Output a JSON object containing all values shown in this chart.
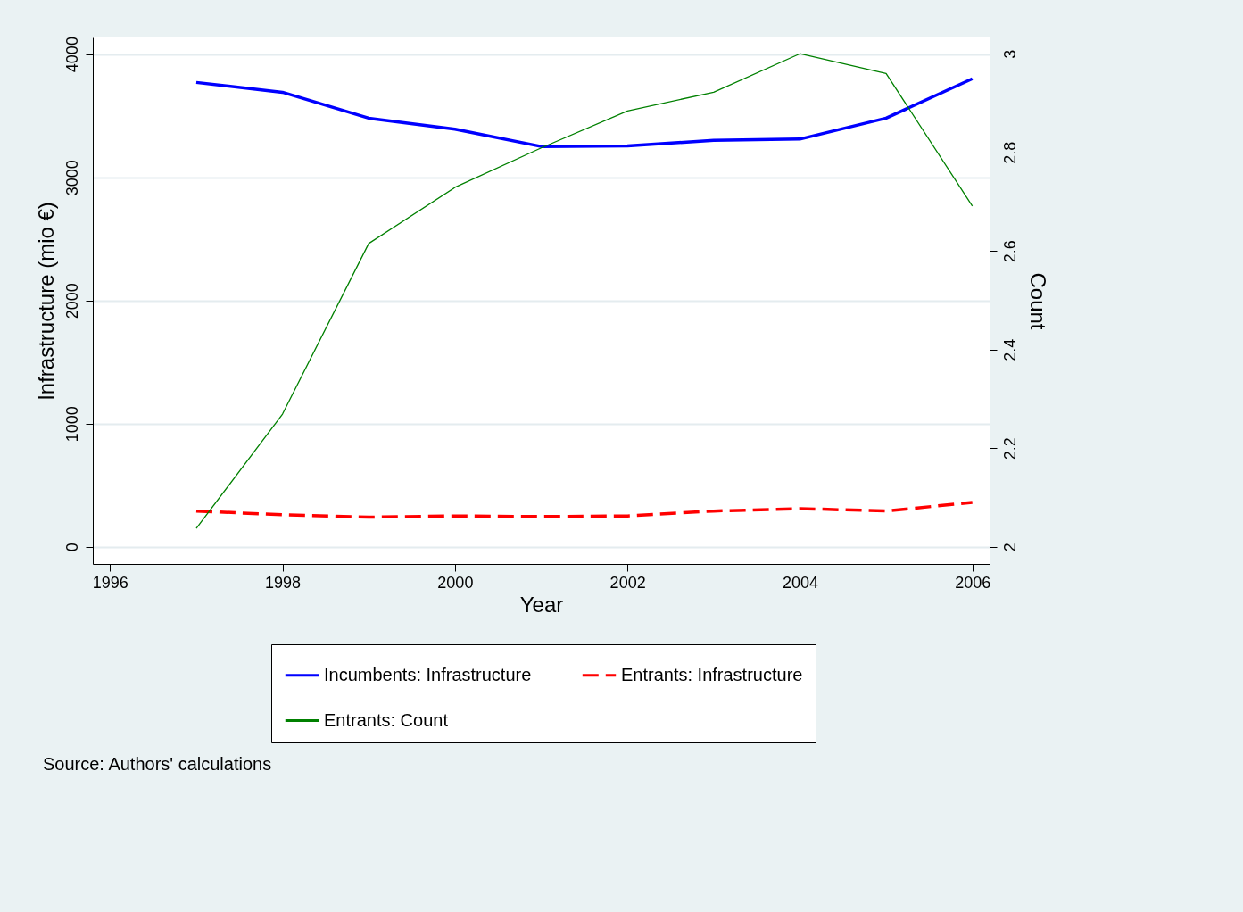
{
  "chart_data": {
    "type": "line",
    "xlabel": "Year",
    "ylabel": "Infrastructure (mio €)",
    "y2label": "Count",
    "x": [
      1997,
      1998,
      1999,
      2000,
      2001,
      2002,
      2003,
      2004,
      2005,
      2006
    ],
    "series": [
      {
        "name": "Incumbents: Infrastructure",
        "color": "#0000ff",
        "line_style": "solid",
        "values": [
          3770,
          3690,
          3480,
          3390,
          3250,
          3255,
          3300,
          3310,
          3480,
          3800
        ]
      },
      {
        "name": "Entrants: Infrastructure",
        "color": "#ff0000",
        "line_style": "dashed",
        "values": [
          290,
          260,
          240,
          250,
          245,
          250,
          290,
          310,
          290,
          360
        ]
      },
      {
        "name": "Entrants: Count",
        "color": "#008000",
        "line_style": "solid",
        "axis": "y2",
        "values": [
          2.037,
          2.269,
          2.615,
          2.729,
          2.809,
          2.884,
          2.922,
          3.0,
          2.96,
          2.691
        ]
      }
    ],
    "xlim": [
      1995.8,
      2006.2
    ],
    "xticks": [
      1996,
      1998,
      2000,
      2002,
      2004,
      2006
    ],
    "ylim": [
      -140,
      4135
    ],
    "yticks": [
      0,
      1000,
      2000,
      3000,
      4000
    ],
    "y2lim": [
      1.965,
      3.033
    ],
    "y2ticks": [
      2,
      2.2,
      2.4,
      2.6,
      2.8,
      3
    ],
    "grid": "y",
    "legend": "bottom",
    "marker": "none",
    "annotations": [
      "Source: Authors' calculations"
    ]
  }
}
